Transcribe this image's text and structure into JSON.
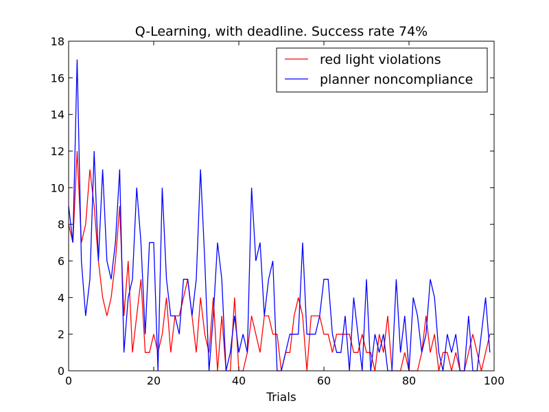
{
  "chart_data": {
    "type": "line",
    "title": "Q-Learning, with deadline. Success rate 74%",
    "xlabel": "Trials",
    "ylabel": "",
    "xlim": [
      0,
      100
    ],
    "ylim": [
      0,
      18
    ],
    "xticks": [
      0,
      20,
      40,
      60,
      80,
      100
    ],
    "yticks": [
      0,
      2,
      4,
      6,
      8,
      10,
      12,
      14,
      16,
      18
    ],
    "grid": false,
    "legend_position": "top-right",
    "x": [
      0,
      1,
      2,
      3,
      4,
      5,
      6,
      7,
      8,
      9,
      10,
      11,
      12,
      13,
      14,
      15,
      16,
      17,
      18,
      19,
      20,
      21,
      22,
      23,
      24,
      25,
      26,
      27,
      28,
      29,
      30,
      31,
      32,
      33,
      34,
      35,
      36,
      37,
      38,
      39,
      40,
      41,
      42,
      43,
      44,
      45,
      46,
      47,
      48,
      49,
      50,
      51,
      52,
      53,
      54,
      55,
      56,
      57,
      58,
      59,
      60,
      61,
      62,
      63,
      64,
      65,
      66,
      67,
      68,
      69,
      70,
      71,
      72,
      73,
      74,
      75,
      76,
      77,
      78,
      79,
      80,
      81,
      82,
      83,
      84,
      85,
      86,
      87,
      88,
      89,
      90,
      91,
      92,
      93,
      94,
      95,
      96,
      97,
      98,
      99
    ],
    "series": [
      {
        "name": "red light violations",
        "color": "#ff0000",
        "values": [
          8,
          7,
          12,
          7,
          8,
          11,
          9,
          6,
          4,
          3,
          4,
          6,
          9,
          3,
          6,
          1,
          3,
          5,
          1,
          1,
          2,
          1,
          2,
          4,
          1,
          3,
          3,
          4,
          5,
          3,
          1,
          4,
          2,
          1,
          4,
          0,
          3,
          0,
          0,
          4,
          0,
          0,
          1,
          3,
          2,
          1,
          3,
          3,
          2,
          2,
          0,
          1,
          1,
          3,
          4,
          3,
          0,
          3,
          3,
          3,
          2,
          2,
          1,
          2,
          2,
          2,
          2,
          1,
          1,
          2,
          1,
          1,
          0,
          2,
          1,
          3,
          0,
          0,
          0,
          1,
          0,
          0,
          0,
          1,
          3,
          1,
          2,
          0,
          1,
          1,
          0,
          1,
          0,
          0,
          1,
          2,
          1,
          0,
          1,
          2
        ]
      },
      {
        "name": "planner noncompliance",
        "color": "#0000ff",
        "values": [
          9,
          7,
          17,
          6,
          3,
          5,
          12,
          6,
          11,
          6,
          5,
          7,
          11,
          1,
          4,
          5,
          10,
          7,
          2,
          7,
          7,
          0,
          10,
          5,
          3,
          3,
          2,
          5,
          5,
          3,
          5,
          11,
          6,
          0,
          3,
          7,
          5,
          0,
          1,
          3,
          1,
          2,
          1,
          10,
          6,
          7,
          3,
          5,
          6,
          0,
          0,
          1,
          2,
          2,
          2,
          7,
          2,
          2,
          2,
          3,
          5,
          5,
          2,
          1,
          1,
          3,
          0,
          4,
          2,
          0,
          5,
          0,
          2,
          1,
          2,
          0,
          0,
          5,
          1,
          3,
          0,
          4,
          3,
          1,
          2,
          5,
          4,
          1,
          0,
          2,
          1,
          2,
          0,
          0,
          3,
          0,
          0,
          2,
          4,
          1
        ]
      }
    ]
  }
}
